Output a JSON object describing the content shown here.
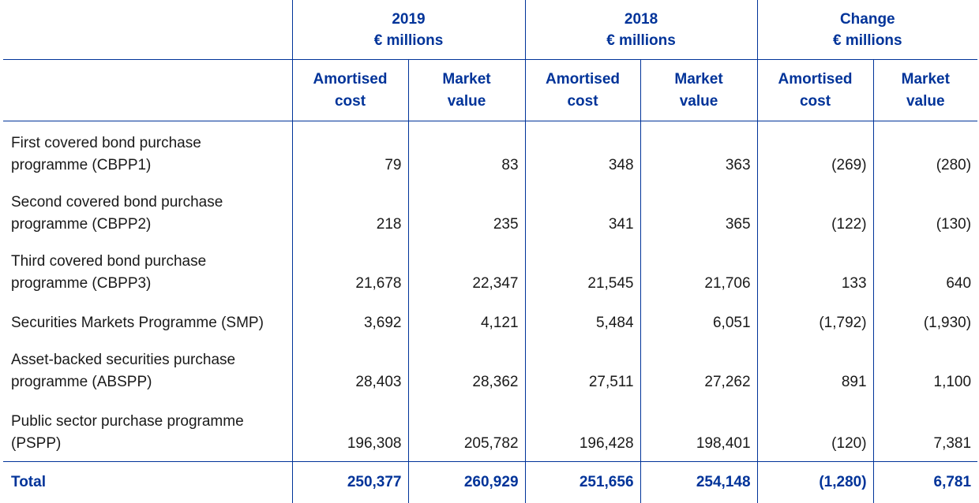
{
  "header": {
    "groups": [
      {
        "line1": "2019",
        "line2": "€ millions"
      },
      {
        "line1": "2018",
        "line2": "€ millions"
      },
      {
        "line1": "Change",
        "line2": "€ millions"
      }
    ],
    "sub": [
      {
        "line1": "Amortised",
        "line2": "cost"
      },
      {
        "line1": "Market",
        "line2": "value"
      },
      {
        "line1": "Amortised",
        "line2": "cost"
      },
      {
        "line1": "Market",
        "line2": "value"
      },
      {
        "line1": "Amortised",
        "line2": "cost"
      },
      {
        "line1": "Market",
        "line2": "value"
      }
    ]
  },
  "rows": [
    {
      "label1": "First covered bond purchase",
      "label2": "programme (CBPP1)",
      "values": [
        "79",
        "83",
        "348",
        "363",
        "(269)",
        "(280)"
      ]
    },
    {
      "label1": "Second covered bond purchase",
      "label2": "programme (CBPP2)",
      "values": [
        "218",
        "235",
        "341",
        "365",
        "(122)",
        "(130)"
      ]
    },
    {
      "label1": "Third covered bond purchase",
      "label2": "programme (CBPP3)",
      "values": [
        "21,678",
        "22,347",
        "21,545",
        "21,706",
        "133",
        "640"
      ]
    },
    {
      "label1": "Securities Markets Programme (SMP)",
      "label2": "",
      "values": [
        "3,692",
        "4,121",
        "5,484",
        "6,051",
        "(1,792)",
        "(1,930)"
      ]
    },
    {
      "label1": "Asset-backed securities purchase",
      "label2": "programme (ABSPP)",
      "values": [
        "28,403",
        "28,362",
        "27,511",
        "27,262",
        "891",
        "1,100"
      ]
    },
    {
      "label1": "Public sector purchase programme",
      "label2": "(PSPP)",
      "values": [
        "196,308",
        "205,782",
        "196,428",
        "198,401",
        "(120)",
        "7,381"
      ]
    }
  ],
  "total": {
    "label": "Total",
    "values": [
      "250,377",
      "260,929",
      "251,656",
      "254,148",
      "(1,280)",
      "6,781"
    ]
  },
  "colors": {
    "accent": "#003399",
    "text": "#1a1a1a"
  }
}
